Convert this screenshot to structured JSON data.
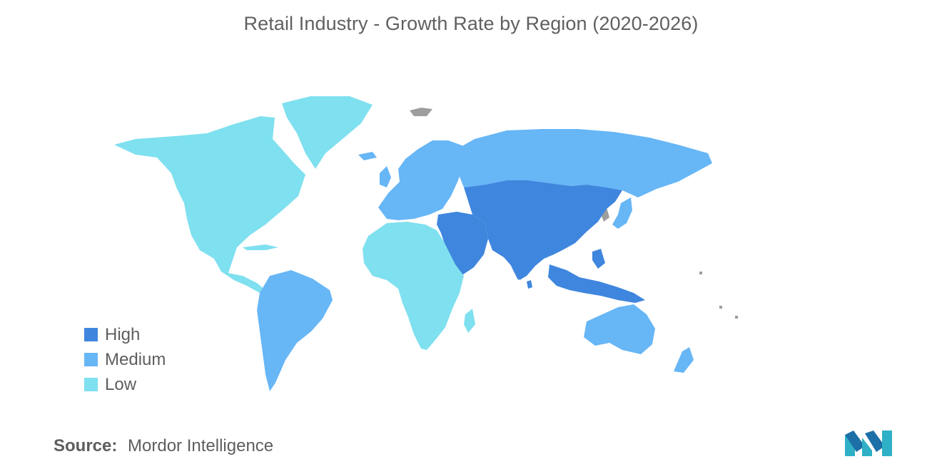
{
  "title": "Retail Industry - Growth Rate by Region (2020-2026)",
  "legend": [
    {
      "label": "High",
      "color": "#3f86de"
    },
    {
      "label": "Medium",
      "color": "#67b6f6"
    },
    {
      "label": "Low",
      "color": "#7fe0ef"
    }
  ],
  "no_data_color": "#9e9e9e",
  "regions": [
    {
      "name": "North America",
      "level": "Low"
    },
    {
      "name": "Greenland",
      "level": "Low"
    },
    {
      "name": "Africa",
      "level": "Low"
    },
    {
      "name": "South America",
      "level": "Medium"
    },
    {
      "name": "Europe",
      "level": "Medium"
    },
    {
      "name": "Russia",
      "level": "Medium"
    },
    {
      "name": "Japan",
      "level": "Medium"
    },
    {
      "name": "Australia",
      "level": "Medium"
    },
    {
      "name": "New Zealand",
      "level": "Medium"
    },
    {
      "name": "Middle East",
      "level": "High"
    },
    {
      "name": "Central Asia",
      "level": "High"
    },
    {
      "name": "China",
      "level": "High"
    },
    {
      "name": "India",
      "level": "High"
    },
    {
      "name": "Southeast Asia",
      "level": "High"
    }
  ],
  "source": {
    "label": "Source:",
    "value": "Mordor Intelligence"
  },
  "logo_icon": "mordor-intelligence-logo"
}
